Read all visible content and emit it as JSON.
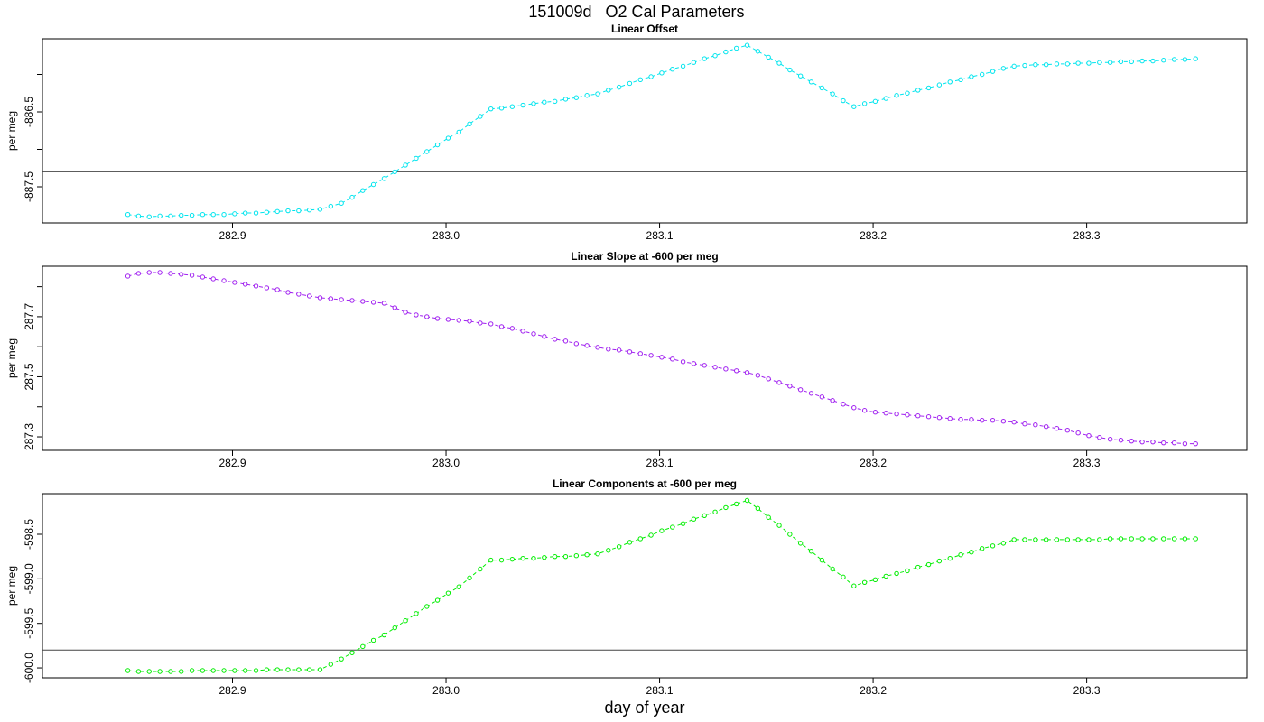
{
  "title": "151009d   O2 Cal Parameters",
  "chart_data": [
    {
      "type": "line",
      "title": "Linear Offset",
      "ylabel": "per meg",
      "color": "#00e5ee",
      "marker": "circle",
      "linestyle": "dashed",
      "xlim": [
        282.811,
        283.375
      ],
      "xticks": [
        282.9,
        {
          "value": 283,
          "label": "283.0"
        },
        283.1,
        283.2,
        283.3
      ],
      "ylim": [
        -887.982,
        -885.524
      ],
      "yticks": [
        -887.5,
        -886.5
      ],
      "minor_yticks": [
        -887,
        -886
      ],
      "hline": -887.3,
      "x": [
        282.851,
        282.856,
        282.861,
        282.866,
        282.871,
        282.876,
        282.881,
        282.886,
        282.891,
        282.896,
        282.901,
        282.906,
        282.911,
        282.916,
        282.921,
        282.926,
        282.931,
        282.936,
        282.941,
        282.946,
        282.951,
        282.956,
        282.961,
        282.966,
        282.971,
        282.976,
        282.981,
        282.986,
        282.991,
        282.996,
        283.001,
        283.006,
        283.011,
        283.016,
        283.021,
        283.026,
        283.031,
        283.036,
        283.041,
        283.046,
        283.051,
        283.056,
        283.061,
        283.066,
        283.071,
        283.076,
        283.081,
        283.086,
        283.091,
        283.096,
        283.101,
        283.106,
        283.111,
        283.116,
        283.121,
        283.126,
        283.131,
        283.136,
        283.141,
        283.146,
        283.151,
        283.156,
        283.161,
        283.166,
        283.171,
        283.176,
        283.181,
        283.186,
        283.191,
        283.196,
        283.201,
        283.206,
        283.211,
        283.216,
        283.221,
        283.226,
        283.231,
        283.236,
        283.241,
        283.246,
        283.251,
        283.256,
        283.261,
        283.266,
        283.271,
        283.276,
        283.281,
        283.286,
        283.291,
        283.296,
        283.301,
        283.306,
        283.311,
        283.316,
        283.321,
        283.326,
        283.331,
        283.336,
        283.341,
        283.346,
        283.351
      ],
      "values": [
        -887.87,
        -887.89,
        -887.9,
        -887.89,
        -887.89,
        -887.88,
        -887.88,
        -887.87,
        -887.87,
        -887.87,
        -887.86,
        -887.85,
        -887.85,
        -887.84,
        -887.83,
        -887.82,
        -887.82,
        -887.81,
        -887.8,
        -887.76,
        -887.72,
        -887.64,
        -887.55,
        -887.47,
        -887.39,
        -887.3,
        -887.21,
        -887.12,
        -887.03,
        -886.94,
        -886.85,
        -886.77,
        -886.66,
        -886.56,
        -886.46,
        -886.45,
        -886.43,
        -886.41,
        -886.39,
        -886.37,
        -886.36,
        -886.33,
        -886.31,
        -886.28,
        -886.26,
        -886.21,
        -886.17,
        -886.12,
        -886.07,
        -886.03,
        -885.98,
        -885.93,
        -885.89,
        -885.84,
        -885.79,
        -885.75,
        -885.7,
        -885.65,
        -885.61,
        -885.69,
        -885.77,
        -885.85,
        -885.94,
        -886.02,
        -886.1,
        -886.18,
        -886.26,
        -886.35,
        -886.43,
        -886.39,
        -886.36,
        -886.32,
        -886.28,
        -886.25,
        -886.21,
        -886.18,
        -886.14,
        -886.1,
        -886.07,
        -886.03,
        -886.0,
        -885.96,
        -885.92,
        -885.89,
        -885.88,
        -885.87,
        -885.87,
        -885.86,
        -885.86,
        -885.85,
        -885.85,
        -885.84,
        -885.84,
        -885.83,
        -885.83,
        -885.82,
        -885.82,
        -885.81,
        -885.8,
        -885.8,
        -885.79
      ]
    },
    {
      "type": "line",
      "title": "Linear Slope at -600 per meg",
      "ylabel": "per meg",
      "color": "#a020f0",
      "marker": "circle",
      "linestyle": "dashed",
      "xlim": [
        282.811,
        283.375
      ],
      "xticks": [
        282.9,
        {
          "value": 283,
          "label": "283.0"
        },
        283.1,
        283.2,
        283.3
      ],
      "ylim": [
        287.255,
        287.868
      ],
      "yticks": [
        287.3,
        287.5,
        287.7
      ],
      "minor_yticks": [
        287.4,
        287.6,
        287.8
      ],
      "x": [
        282.851,
        282.856,
        282.861,
        282.866,
        282.871,
        282.876,
        282.881,
        282.886,
        282.891,
        282.896,
        282.901,
        282.906,
        282.911,
        282.916,
        282.921,
        282.926,
        282.931,
        282.936,
        282.941,
        282.946,
        282.951,
        282.956,
        282.961,
        282.966,
        282.971,
        282.976,
        282.981,
        282.986,
        282.991,
        282.996,
        283.001,
        283.006,
        283.011,
        283.016,
        283.021,
        283.026,
        283.031,
        283.036,
        283.041,
        283.046,
        283.051,
        283.056,
        283.061,
        283.066,
        283.071,
        283.076,
        283.081,
        283.086,
        283.091,
        283.096,
        283.101,
        283.106,
        283.111,
        283.116,
        283.121,
        283.126,
        283.131,
        283.136,
        283.141,
        283.146,
        283.151,
        283.156,
        283.161,
        283.166,
        283.171,
        283.176,
        283.181,
        283.186,
        283.191,
        283.196,
        283.201,
        283.206,
        283.211,
        283.216,
        283.221,
        283.226,
        283.231,
        283.236,
        283.241,
        283.246,
        283.251,
        283.256,
        283.261,
        283.266,
        283.271,
        283.276,
        283.281,
        283.286,
        283.291,
        283.296,
        283.301,
        283.306,
        283.311,
        283.316,
        283.321,
        283.326,
        283.331,
        283.336,
        283.341,
        283.346,
        283.351
      ],
      "values": [
        287.835,
        287.844,
        287.847,
        287.847,
        287.844,
        287.841,
        287.838,
        287.832,
        287.826,
        287.82,
        287.814,
        287.808,
        287.802,
        287.796,
        287.79,
        287.781,
        287.775,
        287.769,
        287.763,
        287.76,
        287.757,
        287.754,
        287.751,
        287.748,
        287.745,
        287.73,
        287.715,
        287.706,
        287.7,
        287.694,
        287.691,
        287.688,
        287.685,
        287.679,
        287.676,
        287.667,
        287.661,
        287.652,
        287.643,
        287.634,
        287.625,
        287.619,
        287.61,
        287.604,
        287.598,
        287.592,
        287.589,
        287.583,
        287.577,
        287.571,
        287.565,
        287.559,
        287.55,
        287.544,
        287.538,
        287.532,
        287.526,
        287.52,
        287.514,
        287.505,
        287.493,
        287.481,
        287.469,
        287.457,
        287.445,
        287.433,
        287.421,
        287.409,
        287.397,
        287.388,
        287.382,
        287.379,
        287.376,
        287.373,
        287.37,
        287.367,
        287.364,
        287.361,
        287.358,
        287.358,
        287.355,
        287.355,
        287.352,
        287.349,
        287.343,
        287.34,
        287.334,
        287.328,
        287.322,
        287.313,
        287.304,
        287.298,
        287.292,
        287.289,
        287.286,
        287.283,
        287.283,
        287.28,
        287.28,
        287.277,
        287.277
      ]
    },
    {
      "type": "line",
      "title": "Linear Components at -600 per meg",
      "ylabel": "per meg",
      "xlabel": "day of year",
      "color": "#00ee00",
      "marker": "circle",
      "linestyle": "dashed",
      "xlim": [
        282.811,
        283.375
      ],
      "xticks": [
        282.9,
        {
          "value": 283,
          "label": "283.0"
        },
        283.1,
        283.2,
        283.3
      ],
      "ylim": [
        -600.111,
        -598.044
      ],
      "yticks": [
        {
          "value": -600,
          "label": "-600.0"
        },
        -599.5,
        {
          "value": -599,
          "label": "-599.0"
        },
        -598.5
      ],
      "hline": -599.8,
      "x": [
        282.851,
        282.856,
        282.861,
        282.866,
        282.871,
        282.876,
        282.881,
        282.886,
        282.891,
        282.896,
        282.901,
        282.906,
        282.911,
        282.916,
        282.921,
        282.926,
        282.931,
        282.936,
        282.941,
        282.946,
        282.951,
        282.956,
        282.961,
        282.966,
        282.971,
        282.976,
        282.981,
        282.986,
        282.991,
        282.996,
        283.001,
        283.006,
        283.011,
        283.016,
        283.021,
        283.026,
        283.031,
        283.036,
        283.041,
        283.046,
        283.051,
        283.056,
        283.061,
        283.066,
        283.071,
        283.076,
        283.081,
        283.086,
        283.091,
        283.096,
        283.101,
        283.106,
        283.111,
        283.116,
        283.121,
        283.126,
        283.131,
        283.136,
        283.141,
        283.146,
        283.151,
        283.156,
        283.161,
        283.166,
        283.171,
        283.176,
        283.181,
        283.186,
        283.191,
        283.196,
        283.201,
        283.206,
        283.211,
        283.216,
        283.221,
        283.226,
        283.231,
        283.236,
        283.241,
        283.246,
        283.251,
        283.256,
        283.261,
        283.266,
        283.271,
        283.276,
        283.281,
        283.286,
        283.291,
        283.296,
        283.301,
        283.306,
        283.311,
        283.316,
        283.321,
        283.326,
        283.331,
        283.336,
        283.341,
        283.346,
        283.351
      ],
      "values": [
        -600.03,
        -600.04,
        -600.04,
        -600.04,
        -600.04,
        -600.04,
        -600.03,
        -600.03,
        -600.03,
        -600.03,
        -600.03,
        -600.03,
        -600.03,
        -600.02,
        -600.02,
        -600.02,
        -600.02,
        -600.02,
        -600.02,
        -599.96,
        -599.9,
        -599.83,
        -599.76,
        -599.69,
        -599.63,
        -599.55,
        -599.47,
        -599.39,
        -599.31,
        -599.24,
        -599.16,
        -599.09,
        -598.99,
        -598.89,
        -598.79,
        -598.79,
        -598.78,
        -598.77,
        -598.77,
        -598.76,
        -598.75,
        -598.75,
        -598.74,
        -598.73,
        -598.72,
        -598.68,
        -598.64,
        -598.59,
        -598.55,
        -598.51,
        -598.46,
        -598.42,
        -598.38,
        -598.33,
        -598.29,
        -598.25,
        -598.2,
        -598.16,
        -598.12,
        -598.21,
        -598.31,
        -598.4,
        -598.5,
        -598.6,
        -598.69,
        -598.79,
        -598.89,
        -598.98,
        -599.08,
        -599.04,
        -599.01,
        -598.97,
        -598.94,
        -598.91,
        -598.87,
        -598.84,
        -598.8,
        -598.77,
        -598.73,
        -598.7,
        -598.66,
        -598.63,
        -598.6,
        -598.56,
        -598.56,
        -598.56,
        -598.56,
        -598.56,
        -598.56,
        -598.56,
        -598.56,
        -598.56,
        -598.55,
        -598.55,
        -598.55,
        -598.55,
        -598.55,
        -598.55,
        -598.55,
        -598.55,
        -598.55
      ]
    }
  ]
}
